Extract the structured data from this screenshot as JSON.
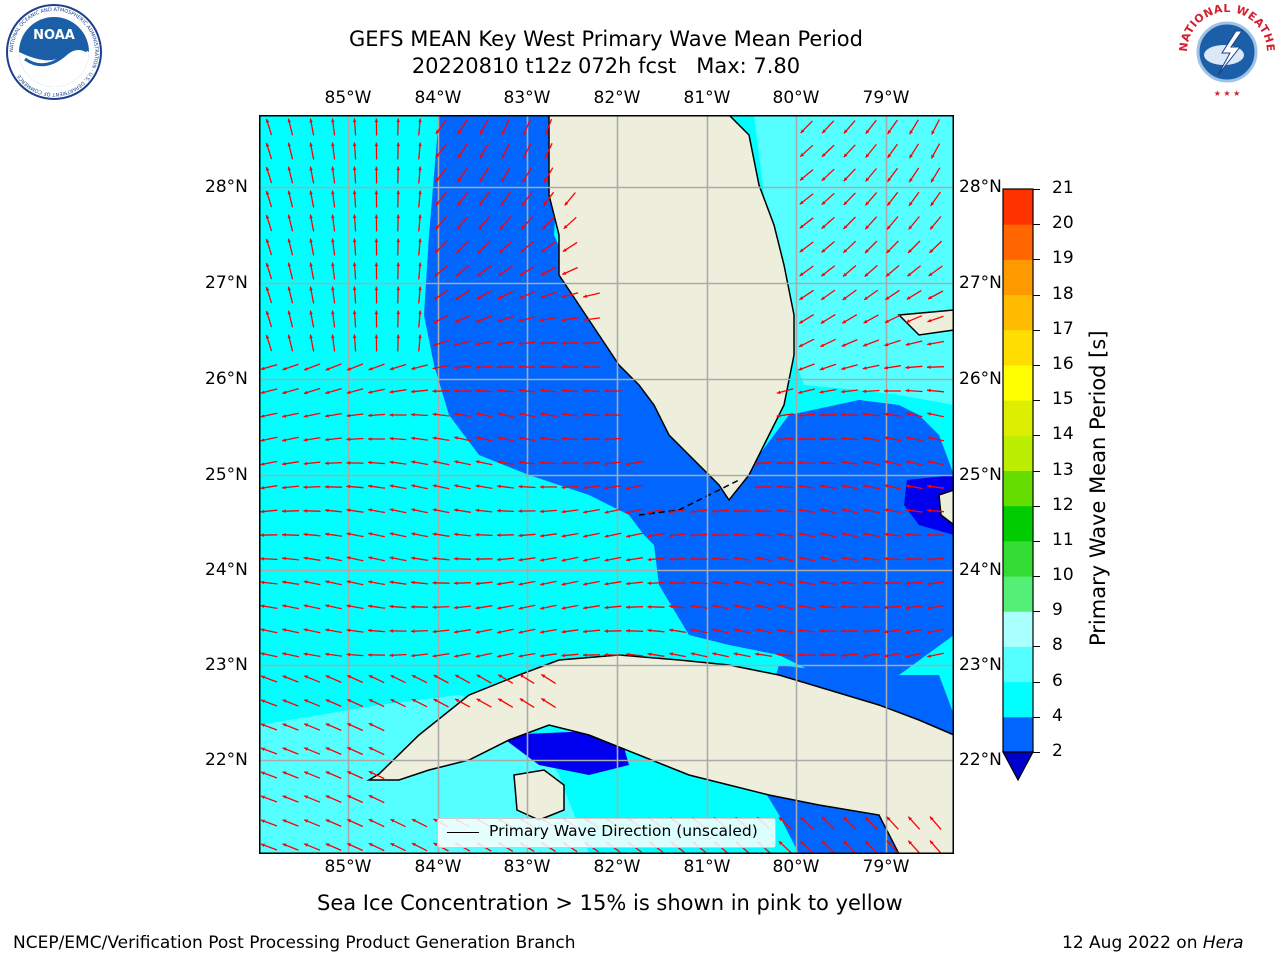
{
  "title": {
    "line1": "GEFS MEAN Key West Primary Wave Mean Period",
    "line2": "20220810 t12z 072h fcst   Max: 7.80"
  },
  "map": {
    "lon_labels": [
      "85°W",
      "84°W",
      "83°W",
      "82°W",
      "81°W",
      "80°W",
      "79°W"
    ],
    "lat_labels": [
      "28°N",
      "27°N",
      "26°N",
      "25°N",
      "24°N",
      "23°N",
      "22°N"
    ],
    "lon_range": [
      -86,
      -78.3
    ],
    "lat_range": [
      21,
      28.8
    ],
    "grid": true,
    "region": "Key West / Florida Straits",
    "field": "Primary Wave Mean Period",
    "vectors": "Primary wave direction (red arrows)",
    "legend_label": "Primary Wave Direction (unscaled)",
    "land_color": "#eeeedd",
    "arrow_color": "#ff0000"
  },
  "colorbar": {
    "label": "Primary Wave Mean Period [s]",
    "ticks": [
      "2",
      "4",
      "6",
      "8",
      "9",
      "10",
      "11",
      "12",
      "13",
      "14",
      "15",
      "16",
      "17",
      "18",
      "19",
      "20",
      "21"
    ],
    "colors": [
      "#0066ff",
      "#00ffff",
      "#55ffff",
      "#aaffff",
      "#55ee77",
      "#33dd33",
      "#00cc00",
      "#66dd00",
      "#bbee00",
      "#ddee00",
      "#ffff00",
      "#ffdd00",
      "#ffbb00",
      "#ff9900",
      "#ff6600",
      "#ff3300",
      "#ff0000"
    ],
    "extend_min_color": "#0000cc"
  },
  "chart_data": {
    "type": "heatmap",
    "title": "GEFS MEAN Key West Primary Wave Mean Period",
    "subtitle": "20220810 t12z 072h fcst   Max: 7.80",
    "xlabel": "",
    "ylabel": "",
    "colorbar_label": "Primary Wave Mean Period [s]",
    "x_ticks": [
      "85°W",
      "84°W",
      "83°W",
      "82°W",
      "81°W",
      "80°W",
      "79°W"
    ],
    "y_ticks": [
      "28°N",
      "27°N",
      "26°N",
      "25°N",
      "24°N",
      "23°N",
      "22°N"
    ],
    "colorbar_ticks": [
      2,
      4,
      6,
      8,
      9,
      10,
      11,
      12,
      13,
      14,
      15,
      16,
      17,
      18,
      19,
      20,
      21
    ],
    "max_value": 7.8,
    "legend": [
      "Primary Wave Direction (unscaled)"
    ]
  },
  "caption": "Sea Ice Concentration > 15% is shown in pink to yellow",
  "footer": {
    "left": "NCEP/EMC/Verification Post Processing Product Generation Branch",
    "right_date": "12 Aug 2022 on ",
    "right_machine": "Hera"
  },
  "logos": {
    "noaa": "NOAA",
    "noaa_ring": "NATIONAL OCEANIC AND ATMOSPHERIC ADMINISTRATION · U.S. DEPARTMENT OF COMMERCE",
    "nws_ring": "NATIONAL WEATHER SERVICE"
  }
}
